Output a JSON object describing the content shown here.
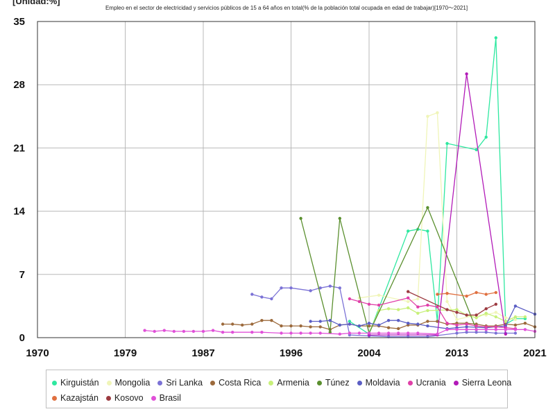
{
  "chart_data": {
    "type": "line",
    "unit_label": "[Unidad:%]",
    "title": "Empleo en el sector de electricidad y servicios públicos de 15 a 64 años en total(% de la población total ocupada en edad de trabajar)[1970～2021]",
    "x_ticks": [
      "1970",
      "1979",
      "1987",
      "1996",
      "2004",
      "2013",
      "2021"
    ],
    "y_ticks": [
      "0",
      "7",
      "14",
      "21",
      "28",
      "35"
    ],
    "xlim": [
      1970,
      2021
    ],
    "ylim": [
      0,
      35
    ],
    "grid": true,
    "legend_position": "bottom",
    "series": [
      {
        "name": "Kirguistán",
        "color": "#2ee8a0",
        "points": [
          [
            2002,
            1.8
          ],
          [
            2004,
            0.4
          ],
          [
            2008,
            11.8
          ],
          [
            2009,
            12.0
          ],
          [
            2010,
            11.8
          ],
          [
            2011,
            1.8
          ],
          [
            2012,
            21.5
          ],
          [
            2015,
            20.8
          ],
          [
            2016,
            22.2
          ],
          [
            2017,
            33.2
          ],
          [
            2018,
            1.5
          ],
          [
            2019,
            2.1
          ],
          [
            2020,
            2.1
          ]
        ]
      },
      {
        "name": "Mongolia",
        "color": "#f0f5b8",
        "points": [
          [
            2003,
            4.4
          ],
          [
            2005,
            4.7
          ],
          [
            2008,
            4.0
          ],
          [
            2009,
            4.3
          ],
          [
            2010,
            24.5
          ],
          [
            2011,
            24.9
          ],
          [
            2012,
            4.0
          ],
          [
            2013,
            2.0
          ],
          [
            2015,
            2.5
          ],
          [
            2016,
            2.5
          ],
          [
            2017,
            2.8
          ],
          [
            2018,
            2.2
          ],
          [
            2019,
            2.0
          ]
        ]
      },
      {
        "name": "Sri Lanka",
        "color": "#7b72d6",
        "points": [
          [
            1992,
            4.8
          ],
          [
            1993,
            4.5
          ],
          [
            1994,
            4.3
          ],
          [
            1995,
            5.5
          ],
          [
            1996,
            5.5
          ],
          [
            1998,
            5.2
          ],
          [
            1999,
            5.5
          ],
          [
            2000,
            5.7
          ],
          [
            2001,
            5.5
          ],
          [
            2002,
            0.3
          ],
          [
            2004,
            0.2
          ],
          [
            2006,
            0.1
          ],
          [
            2008,
            0.1
          ],
          [
            2010,
            0.1
          ],
          [
            2013,
            0.5
          ],
          [
            2014,
            0.6
          ],
          [
            2015,
            0.6
          ],
          [
            2016,
            0.6
          ],
          [
            2017,
            0.5
          ],
          [
            2018,
            0.5
          ],
          [
            2019,
            0.5
          ]
        ]
      },
      {
        "name": "Costa Rica",
        "color": "#9c6a3c",
        "points": [
          [
            1989,
            1.5
          ],
          [
            1990,
            1.5
          ],
          [
            1991,
            1.4
          ],
          [
            1992,
            1.5
          ],
          [
            1993,
            1.9
          ],
          [
            1994,
            1.9
          ],
          [
            1995,
            1.3
          ],
          [
            1996,
            1.3
          ],
          [
            1997,
            1.3
          ],
          [
            1998,
            1.2
          ],
          [
            1999,
            1.2
          ],
          [
            2000,
            0.9
          ],
          [
            2001,
            1.4
          ],
          [
            2002,
            1.5
          ],
          [
            2003,
            1.3
          ],
          [
            2004,
            1.3
          ],
          [
            2005,
            1.3
          ],
          [
            2006,
            1.1
          ],
          [
            2007,
            1.0
          ],
          [
            2008,
            1.4
          ],
          [
            2009,
            1.4
          ],
          [
            2010,
            1.8
          ],
          [
            2011,
            1.8
          ],
          [
            2012,
            1.5
          ],
          [
            2013,
            1.6
          ],
          [
            2014,
            1.6
          ],
          [
            2015,
            1.5
          ],
          [
            2016,
            1.3
          ],
          [
            2017,
            1.3
          ],
          [
            2018,
            1.5
          ],
          [
            2019,
            1.4
          ],
          [
            2020,
            1.6
          ],
          [
            2021,
            1.2
          ]
        ]
      },
      {
        "name": "Armenia",
        "color": "#c8f07a",
        "points": [
          [
            2004,
            0.5
          ],
          [
            2005,
            3.0
          ],
          [
            2006,
            3.2
          ],
          [
            2007,
            3.1
          ],
          [
            2008,
            3.3
          ],
          [
            2009,
            2.7
          ],
          [
            2010,
            3.0
          ],
          [
            2013,
            3.1
          ],
          [
            2014,
            2.5
          ],
          [
            2015,
            2.2
          ],
          [
            2016,
            2.7
          ],
          [
            2017,
            2.3
          ],
          [
            2018,
            1.8
          ],
          [
            2019,
            2.3
          ],
          [
            2020,
            2.3
          ]
        ]
      },
      {
        "name": "Túnez",
        "color": "#5a8f2e",
        "points": [
          [
            1997,
            13.2
          ],
          [
            2000,
            0.6
          ],
          [
            2001,
            13.2
          ],
          [
            2004,
            0.5
          ],
          [
            2010,
            14.4
          ],
          [
            2015,
            0.9
          ]
        ]
      },
      {
        "name": "Moldavia",
        "color": "#5b5ec4",
        "points": [
          [
            1998,
            1.8
          ],
          [
            1999,
            1.8
          ],
          [
            2000,
            1.9
          ],
          [
            2001,
            1.4
          ],
          [
            2002,
            1.5
          ],
          [
            2003,
            1.3
          ],
          [
            2004,
            1.6
          ],
          [
            2005,
            1.4
          ],
          [
            2006,
            1.9
          ],
          [
            2007,
            1.9
          ],
          [
            2008,
            1.6
          ],
          [
            2009,
            1.5
          ],
          [
            2010,
            1.3
          ],
          [
            2012,
            1.0
          ],
          [
            2013,
            1.1
          ],
          [
            2014,
            1.2
          ],
          [
            2016,
            1.1
          ],
          [
            2017,
            1.2
          ],
          [
            2018,
            1.3
          ],
          [
            2019,
            3.5
          ],
          [
            2021,
            2.6
          ]
        ]
      },
      {
        "name": "Ucrania",
        "color": "#e040a8",
        "points": [
          [
            2002,
            4.3
          ],
          [
            2003,
            4.0
          ],
          [
            2004,
            3.7
          ],
          [
            2005,
            3.6
          ],
          [
            2008,
            4.4
          ],
          [
            2009,
            3.4
          ],
          [
            2010,
            3.6
          ],
          [
            2011,
            3.4
          ],
          [
            2012,
            1.6
          ],
          [
            2013,
            1.4
          ],
          [
            2014,
            1.5
          ],
          [
            2015,
            1.3
          ],
          [
            2016,
            1.2
          ],
          [
            2017,
            1.2
          ],
          [
            2018,
            1.1
          ],
          [
            2019,
            1.0
          ]
        ]
      },
      {
        "name": "Sierra Leona",
        "color": "#b21ab8",
        "points": [
          [
            2004,
            0.3
          ],
          [
            2011,
            0.3
          ],
          [
            2014,
            29.2
          ],
          [
            2018,
            0.4
          ]
        ]
      },
      {
        "name": "Kazajstán",
        "color": "#e07040",
        "points": [
          [
            2011,
            4.8
          ],
          [
            2012,
            4.9
          ],
          [
            2014,
            4.6
          ],
          [
            2015,
            5.0
          ],
          [
            2016,
            4.8
          ],
          [
            2017,
            5.0
          ]
        ]
      },
      {
        "name": "Kosovo",
        "color": "#9c3a40",
        "points": [
          [
            2008,
            5.1
          ],
          [
            2012,
            3.1
          ],
          [
            2013,
            2.8
          ],
          [
            2014,
            2.5
          ],
          [
            2015,
            2.5
          ],
          [
            2016,
            3.2
          ],
          [
            2017,
            3.7
          ]
        ]
      },
      {
        "name": "Brasil",
        "color": "#e050d8",
        "points": [
          [
            1981,
            0.8
          ],
          [
            1982,
            0.7
          ],
          [
            1983,
            0.8
          ],
          [
            1984,
            0.7
          ],
          [
            1985,
            0.7
          ],
          [
            1986,
            0.7
          ],
          [
            1987,
            0.7
          ],
          [
            1988,
            0.8
          ],
          [
            1989,
            0.6
          ],
          [
            1990,
            0.6
          ],
          [
            1992,
            0.6
          ],
          [
            1993,
            0.6
          ],
          [
            1995,
            0.5
          ],
          [
            1996,
            0.5
          ],
          [
            1997,
            0.5
          ],
          [
            1998,
            0.5
          ],
          [
            1999,
            0.5
          ],
          [
            2001,
            0.4
          ],
          [
            2002,
            0.5
          ],
          [
            2003,
            0.5
          ],
          [
            2004,
            0.5
          ],
          [
            2005,
            0.5
          ],
          [
            2006,
            0.5
          ],
          [
            2007,
            0.5
          ],
          [
            2008,
            0.5
          ],
          [
            2009,
            0.5
          ],
          [
            2011,
            0.4
          ],
          [
            2012,
            0.9
          ],
          [
            2013,
            0.9
          ],
          [
            2014,
            0.9
          ],
          [
            2015,
            0.9
          ],
          [
            2016,
            0.9
          ],
          [
            2017,
            0.9
          ],
          [
            2018,
            0.9
          ],
          [
            2019,
            0.9
          ],
          [
            2020,
            0.9
          ],
          [
            2021,
            0.7
          ]
        ]
      }
    ]
  }
}
